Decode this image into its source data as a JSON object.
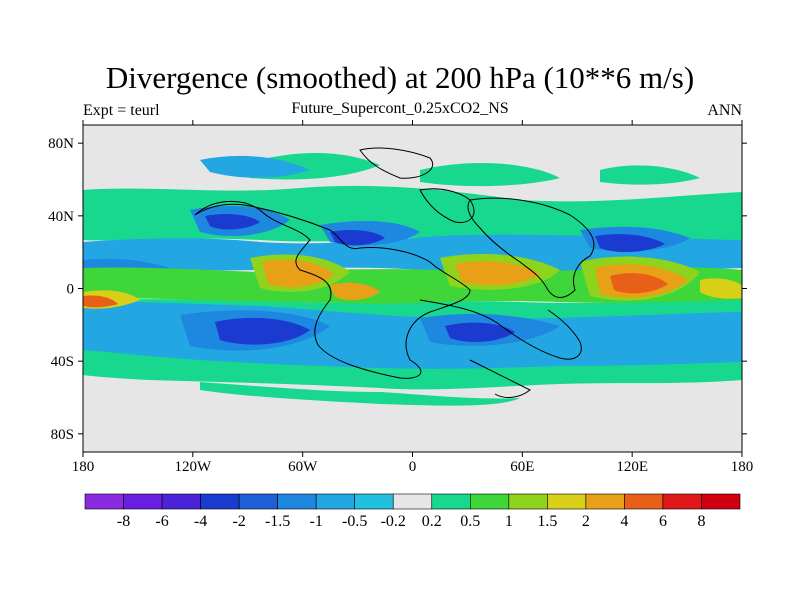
{
  "title": "Divergence (smoothed) at 200 hPa (10**6 m/s)",
  "subtitle": "Future_Supercont_0.25xCO2_NS",
  "left_label": "Expt = teurl",
  "right_label": "ANN",
  "map": {
    "lat_ticks": [
      "80N",
      "40N",
      "0",
      "40S",
      "80S"
    ],
    "lon_ticks": [
      "180",
      "120W",
      "60W",
      "0",
      "60E",
      "120E",
      "180"
    ],
    "background_color": "#e6e6e6",
    "coastline_color": "#000000"
  },
  "colorbar": {
    "labels": [
      "-8",
      "-6",
      "-4",
      "-2",
      "-1.5",
      "-1",
      "-0.5",
      "-0.2",
      "0.2",
      "0.5",
      "1",
      "1.5",
      "2",
      "4",
      "6",
      "8"
    ],
    "colors": [
      "#8a2be2",
      "#6a1fe0",
      "#4a22d8",
      "#1a3ad0",
      "#1e5fd8",
      "#1e88e0",
      "#22a7e2",
      "#20c0e0",
      "#e6e6e6",
      "#18d890",
      "#3fd63a",
      "#8ed41c",
      "#d8d018",
      "#e8a018",
      "#e86018",
      "#e01818",
      "#d00010"
    ]
  }
}
